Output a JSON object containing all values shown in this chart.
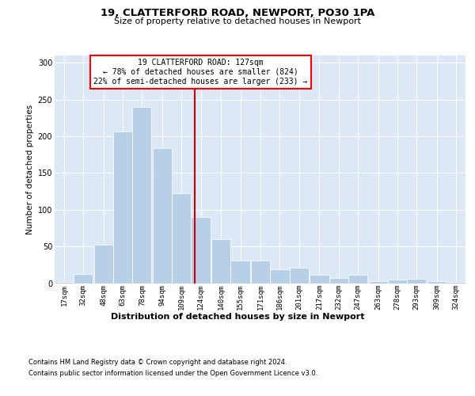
{
  "title1": "19, CLATTERFORD ROAD, NEWPORT, PO30 1PA",
  "title2": "Size of property relative to detached houses in Newport",
  "xlabel": "Distribution of detached houses by size in Newport",
  "ylabel": "Number of detached properties",
  "footer1": "Contains HM Land Registry data © Crown copyright and database right 2024.",
  "footer2": "Contains public sector information licensed under the Open Government Licence v3.0.",
  "annotation_line1": "19 CLATTERFORD ROAD: 127sqm",
  "annotation_line2": "← 78% of detached houses are smaller (824)",
  "annotation_line3": "22% of semi-detached houses are larger (233) →",
  "bar_color": "#b8cfe8",
  "bar_edge_color": "#ffffff",
  "bg_color": "#dce8f5",
  "vline_color": "#cc0000",
  "vline_x": 127,
  "bin_edges": [
    17,
    32,
    48,
    63,
    78,
    94,
    109,
    124,
    140,
    155,
    171,
    186,
    201,
    217,
    232,
    247,
    263,
    278,
    293,
    309,
    324,
    339
  ],
  "values": [
    2,
    12,
    52,
    206,
    240,
    184,
    122,
    90,
    60,
    31,
    31,
    19,
    21,
    11,
    7,
    11,
    3,
    5,
    6,
    3,
    2
  ],
  "categories": [
    "17sqm",
    "32sqm",
    "48sqm",
    "63sqm",
    "78sqm",
    "94sqm",
    "109sqm",
    "124sqm",
    "140sqm",
    "155sqm",
    "171sqm",
    "186sqm",
    "201sqm",
    "217sqm",
    "232sqm",
    "247sqm",
    "263sqm",
    "278sqm",
    "293sqm",
    "309sqm",
    "324sqm"
  ],
  "ylim": [
    0,
    310
  ],
  "yticks": [
    0,
    50,
    100,
    150,
    200,
    250,
    300
  ],
  "title1_fontsize": 9.5,
  "title2_fontsize": 8.0,
  "ylabel_fontsize": 7.5,
  "xlabel_fontsize": 8.0,
  "tick_fontsize": 6.5,
  "footer_fontsize": 6.0,
  "annot_fontsize": 7.0
}
